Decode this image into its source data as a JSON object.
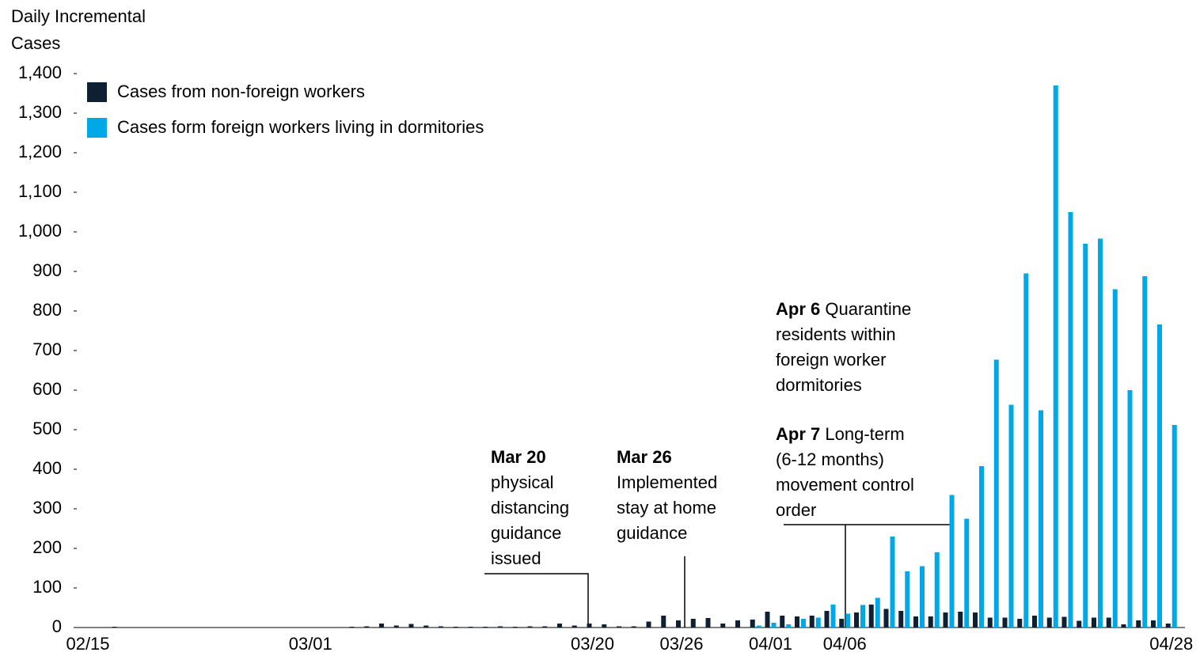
{
  "chart_data": {
    "type": "bar",
    "y_axis_label": [
      "Daily Incremental",
      "Cases"
    ],
    "categories": [
      "02/15",
      null,
      null,
      null,
      null,
      null,
      null,
      null,
      null,
      null,
      null,
      null,
      null,
      null,
      null,
      "03/01",
      null,
      null,
      null,
      null,
      null,
      null,
      null,
      null,
      null,
      null,
      null,
      null,
      null,
      null,
      null,
      null,
      null,
      null,
      "03/20",
      null,
      null,
      null,
      null,
      null,
      "03/26",
      null,
      null,
      null,
      null,
      null,
      "04/01",
      null,
      null,
      null,
      null,
      "04/06",
      null,
      null,
      null,
      null,
      null,
      null,
      null,
      null,
      null,
      null,
      null,
      null,
      null,
      null,
      null,
      null,
      null,
      null,
      null,
      null,
      null,
      "04/28"
    ],
    "series": [
      {
        "name": "Cases from non-foreign workers",
        "color": "#0f2033",
        "values": [
          0,
          0,
          2,
          0,
          0,
          0,
          0,
          0,
          0,
          0,
          0,
          0,
          0,
          0,
          0,
          0,
          0,
          0,
          2,
          3,
          10,
          5,
          9,
          5,
          3,
          2,
          2,
          2,
          3,
          2,
          3,
          3,
          10,
          5,
          10,
          8,
          3,
          3,
          15,
          30,
          18,
          22,
          24,
          10,
          18,
          20,
          40,
          30,
          28,
          30,
          42,
          22,
          38,
          58,
          47,
          42,
          28,
          28,
          38,
          40,
          38,
          25,
          25,
          22,
          30,
          25,
          27,
          17,
          25,
          25,
          8,
          18,
          18,
          10
        ]
      },
      {
        "name": "Cases form foreign workers living in dormitories",
        "color": "#00a8e8",
        "values": [
          0,
          0,
          0,
          0,
          0,
          0,
          0,
          0,
          0,
          0,
          0,
          0,
          0,
          0,
          0,
          0,
          0,
          0,
          0,
          0,
          0,
          0,
          0,
          0,
          0,
          0,
          0,
          0,
          0,
          0,
          0,
          0,
          0,
          0,
          0,
          0,
          0,
          0,
          0,
          0,
          0,
          0,
          0,
          0,
          0,
          5,
          12,
          8,
          22,
          25,
          58,
          35,
          57,
          75,
          230,
          142,
          155,
          190,
          335,
          275,
          408,
          677,
          563,
          895,
          549,
          1370,
          1050,
          970,
          983,
          855,
          600,
          888,
          766,
          512
        ]
      }
    ],
    "ylim": [
      0,
      1400
    ],
    "yticks": [
      0,
      100,
      200,
      300,
      400,
      500,
      600,
      700,
      800,
      900,
      {
        "value": 1000,
        "label": "1,000"
      },
      {
        "value": 1100,
        "label": "1,100"
      },
      {
        "value": 1200,
        "label": "1,200"
      },
      {
        "value": 1300,
        "label": "1,300"
      },
      {
        "value": 1400,
        "label": "1,400"
      }
    ],
    "legend": "upper left",
    "annotations": [
      {
        "bold": "Mar 20",
        "lines": [
          "physical",
          "distancing",
          "guidance",
          "issued"
        ]
      },
      {
        "bold": "Mar 26",
        "lines": [
          "Implemented",
          "stay at home",
          "guidance"
        ]
      },
      {
        "bold": "Apr 6",
        "lines": [
          "Quarantine",
          "residents within",
          "foreign worker",
          "dormitories"
        ]
      },
      {
        "bold": "Apr 7",
        "lines": [
          "Long-term",
          "(6-12 months)",
          "movement control",
          "order"
        ]
      }
    ]
  }
}
